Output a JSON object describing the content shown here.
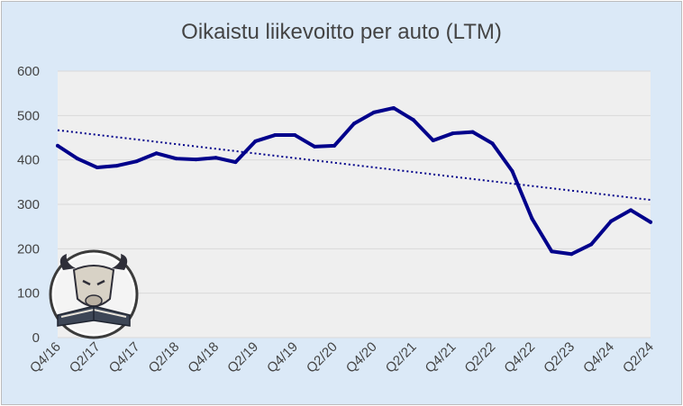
{
  "chart_data": {
    "type": "line",
    "title": "Oikaistu liikevoitto per auto (LTM)",
    "xlabel": "",
    "ylabel": "",
    "ylim": [
      0,
      600
    ],
    "yticks": [
      0,
      100,
      200,
      300,
      400,
      500,
      600
    ],
    "grid": true,
    "legend": "none",
    "x": [
      "Q4/16",
      "Q1/17",
      "Q2/17",
      "Q3/17",
      "Q4/17",
      "Q1/18",
      "Q2/18",
      "Q3/18",
      "Q4/18",
      "Q1/19",
      "Q2/19",
      "Q3/19",
      "Q4/19",
      "Q1/20",
      "Q2/20",
      "Q3/20",
      "Q4/20",
      "Q1/21",
      "Q2/21",
      "Q3/21",
      "Q4/21",
      "Q1/22",
      "Q2/22",
      "Q3/22",
      "Q4/22",
      "Q1/23",
      "Q2/23",
      "Q3/23",
      "Q4/24",
      "Q1/24",
      "Q2/24"
    ],
    "x_tick_labels": [
      "Q4/16",
      "Q2/17",
      "Q4/17",
      "Q2/18",
      "Q4/18",
      "Q2/19",
      "Q4/19",
      "Q2/20",
      "Q4/20",
      "Q2/21",
      "Q4/21",
      "Q2/22",
      "Q4/22",
      "Q2/23",
      "Q4/24",
      "Q2/24"
    ],
    "series": [
      {
        "color": "#00008b",
        "values": [
          432,
          403,
          383,
          387,
          397,
          415,
          403,
          401,
          405,
          395,
          442,
          456,
          456,
          430,
          432,
          482,
          507,
          517,
          490,
          444,
          460,
          463,
          437,
          375,
          268,
          194,
          188,
          210,
          262,
          287,
          260
        ]
      }
    ],
    "trendline": {
      "style": "dotted",
      "color": "#00008b",
      "start": 467,
      "end": 310
    },
    "colors": {
      "background": "#dbe9f7",
      "plot_area": "#efefef",
      "grid": "#d9d9d9"
    },
    "logo_icon": "bull-reading-book-icon"
  }
}
